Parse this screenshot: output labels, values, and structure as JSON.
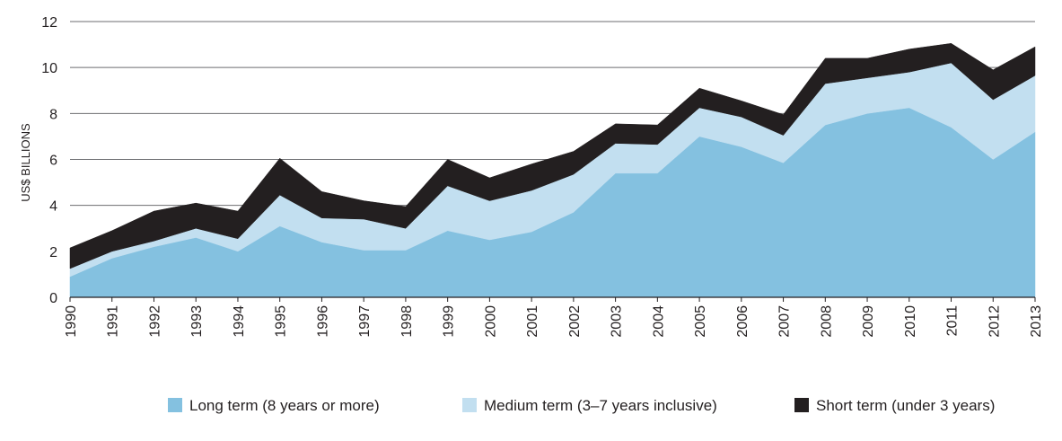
{
  "chart_data": {
    "type": "area",
    "stacked": true,
    "title": "",
    "xlabel": "",
    "ylabel": "US$ BILLIONS",
    "ylim": [
      0,
      12
    ],
    "yticks": [
      "0",
      "2",
      "4",
      "6",
      "8",
      "10",
      "12"
    ],
    "grid": true,
    "legend_position": "bottom",
    "categories": [
      "1990",
      "1991",
      "1992",
      "1993",
      "1994",
      "1995",
      "1996",
      "1997",
      "1998",
      "1999",
      "2000",
      "2001",
      "2002",
      "2003",
      "2004",
      "2005",
      "2006",
      "2007",
      "2008",
      "2009",
      "2010",
      "2011",
      "2012",
      "2013"
    ],
    "series": [
      {
        "name": "Long term (8 years or more)",
        "color": "#84c1e0",
        "values": [
          0.9,
          1.7,
          2.2,
          2.6,
          2.0,
          3.1,
          2.4,
          2.05,
          2.05,
          2.9,
          2.5,
          2.85,
          3.7,
          5.4,
          5.4,
          7.0,
          6.55,
          5.85,
          7.5,
          8.0,
          8.25,
          7.4,
          6.0,
          7.2
        ]
      },
      {
        "name": "Medium term (3–7 years inclusive)",
        "color": "#c2dff0",
        "values": [
          0.35,
          0.3,
          0.25,
          0.4,
          0.55,
          1.35,
          1.05,
          1.35,
          0.95,
          1.95,
          1.7,
          1.8,
          1.65,
          1.3,
          1.25,
          1.25,
          1.3,
          1.2,
          1.8,
          1.55,
          1.55,
          2.8,
          2.6,
          2.45
        ]
      },
      {
        "name": "Short term (under 3 years)",
        "color": "#231f20",
        "values": [
          0.9,
          0.9,
          1.3,
          1.1,
          1.2,
          1.6,
          1.15,
          0.8,
          0.95,
          1.15,
          1.0,
          1.15,
          1.0,
          0.85,
          0.85,
          0.85,
          0.7,
          0.9,
          1.1,
          0.85,
          1.0,
          0.85,
          1.3,
          1.25
        ]
      }
    ]
  }
}
